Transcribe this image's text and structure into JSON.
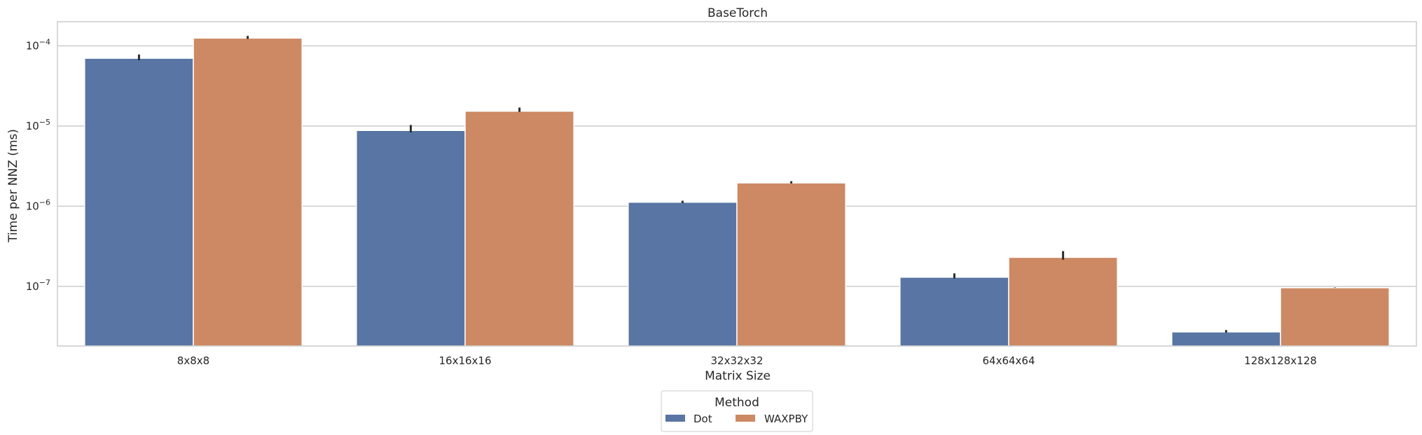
{
  "chart_data": {
    "type": "bar",
    "title": "BaseTorch",
    "xlabel": "Matrix Size",
    "ylabel": "Time per NNZ (ms)",
    "yscale": "log",
    "ylim": [
      1.8e-08,
      0.0002
    ],
    "yticks": [
      {
        "value": 1e-07,
        "base": "10",
        "exp": "−7"
      },
      {
        "value": 1e-06,
        "base": "10",
        "exp": "−6"
      },
      {
        "value": 1e-05,
        "base": "10",
        "exp": "−5"
      },
      {
        "value": 0.0001,
        "base": "10",
        "exp": "−4"
      }
    ],
    "categories": [
      "8x8x8",
      "16x16x16",
      "32x32x32",
      "64x64x64",
      "128x128x128"
    ],
    "series": [
      {
        "name": "Dot",
        "color": "#5875a4",
        "values": [
          7e-05,
          8.8e-06,
          1.12e-06,
          1.3e-07,
          2.7e-08
        ],
        "err_low": [
          6.6e-05,
          8.3e-06,
          1.09e-06,
          1.25e-07,
          2.65e-08
        ],
        "err_high": [
          7.8e-05,
          1.03e-05,
          1.17e-06,
          1.45e-07,
          2.85e-08
        ]
      },
      {
        "name": "WAXPBY",
        "color": "#cc8963",
        "values": [
          0.000125,
          1.53e-05,
          1.95e-06,
          2.3e-07,
          9.6e-08
        ],
        "err_low": [
          0.000122,
          1.5e-05,
          1.92e-06,
          2.15e-07,
          9.6e-08
        ],
        "err_high": [
          0.000133,
          1.7e-05,
          2.05e-06,
          2.75e-07,
          9.7e-08
        ]
      }
    ],
    "legend": {
      "title": "Method",
      "position": "bottom-center"
    },
    "grid": "y"
  }
}
